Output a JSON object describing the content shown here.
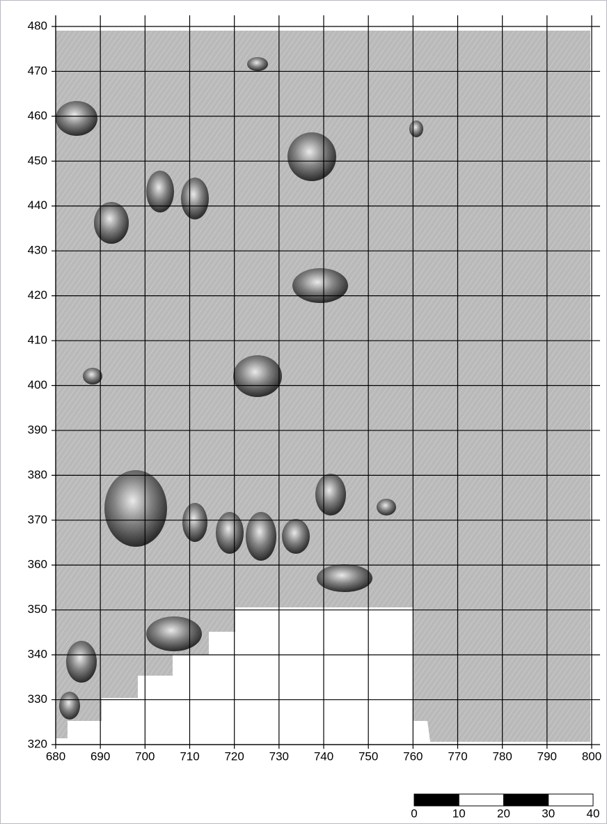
{
  "chart_data": {
    "type": "survey-map",
    "xlim": [
      680,
      800
    ],
    "ylim": [
      320,
      480
    ],
    "xticks": [
      680,
      690,
      700,
      710,
      720,
      730,
      740,
      750,
      760,
      770,
      780,
      790,
      800
    ],
    "yticks": [
      320,
      330,
      340,
      350,
      360,
      370,
      380,
      390,
      400,
      410,
      420,
      430,
      440,
      450,
      460,
      470,
      480
    ],
    "grid": true,
    "scale_bar": [
      0,
      10,
      20,
      30,
      40
    ]
  }
}
